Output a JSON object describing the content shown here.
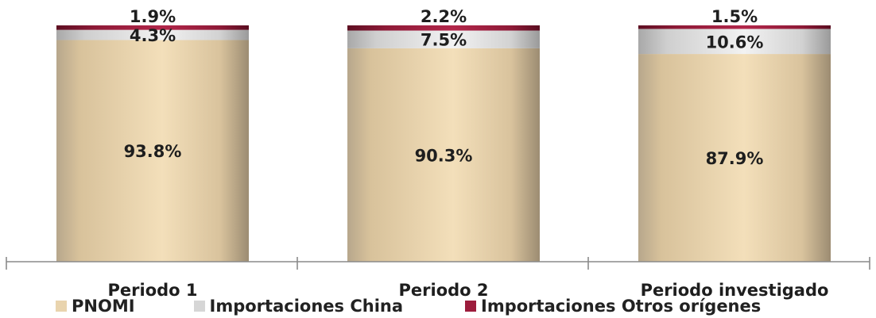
{
  "chart_data": {
    "type": "bar",
    "stacked": true,
    "normalized_percent": true,
    "categories": [
      "Periodo 1",
      "Periodo 2",
      "Periodo investigado"
    ],
    "series": [
      {
        "name": "PNOMI",
        "values": [
          93.8,
          90.3,
          87.9
        ],
        "labels": [
          "93.8%",
          "90.3%",
          "87.9%"
        ],
        "color": "#e9d4ae"
      },
      {
        "name": "Importaciones China",
        "values": [
          4.3,
          7.5,
          10.6
        ],
        "labels": [
          "4.3%",
          "7.5%",
          "10.6%"
        ],
        "color": "#d6d6d6"
      },
      {
        "name": "Importaciones Otros orígenes",
        "values": [
          1.9,
          2.2,
          1.5
        ],
        "labels": [
          "1.9%",
          "2.2%",
          "1.5%"
        ],
        "color": "#9c1c3c"
      }
    ],
    "ylim": [
      0,
      100
    ],
    "grid": false,
    "legend_position": "bottom"
  }
}
